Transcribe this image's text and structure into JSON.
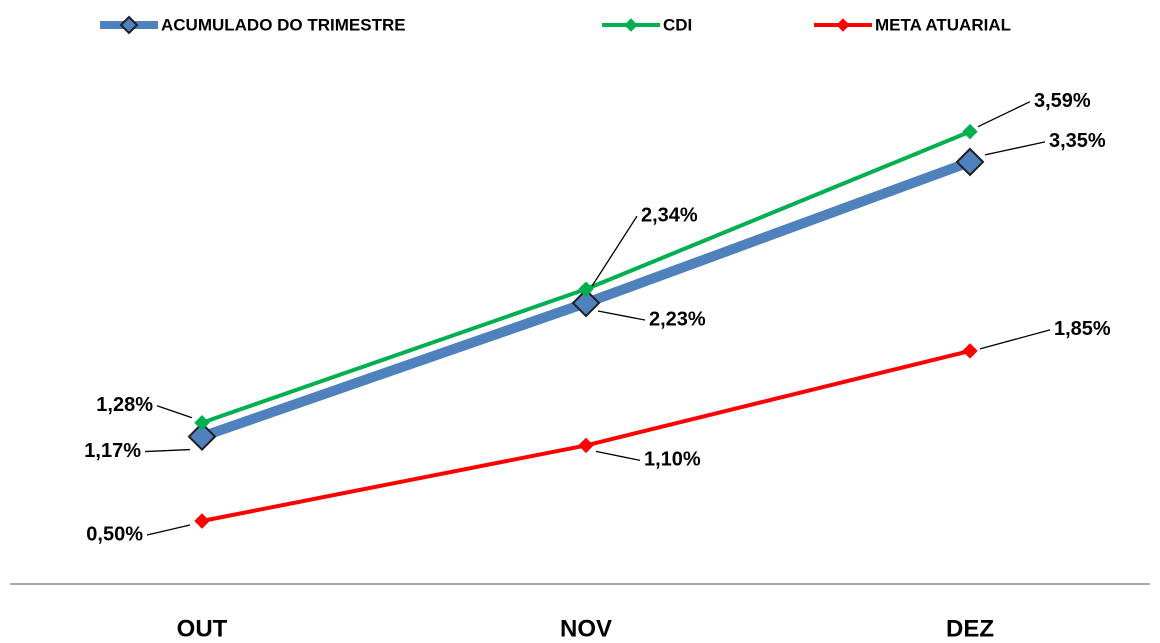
{
  "chart_data": {
    "type": "line",
    "categories": [
      "OUT",
      "NOV",
      "DEZ"
    ],
    "ylim": [
      0,
      4
    ],
    "legend": "top",
    "series": [
      {
        "name": "ACUMULADO DO TRIMESTRE",
        "color": "#4f81bd",
        "values": [
          1.17,
          2.23,
          3.35
        ],
        "value_labels": [
          "1,17%",
          "2,23%",
          "3,35%"
        ]
      },
      {
        "name": "CDI",
        "color": "#00b050",
        "values": [
          1.28,
          2.34,
          3.59
        ],
        "value_labels": [
          "1,28%",
          "2,34%",
          "3,59%"
        ]
      },
      {
        "name": "META ATUARIAL",
        "color": "#ff0000",
        "values": [
          0.5,
          1.1,
          1.85
        ],
        "value_labels": [
          "0,50%",
          "1,10%",
          "1,85%"
        ]
      }
    ]
  }
}
